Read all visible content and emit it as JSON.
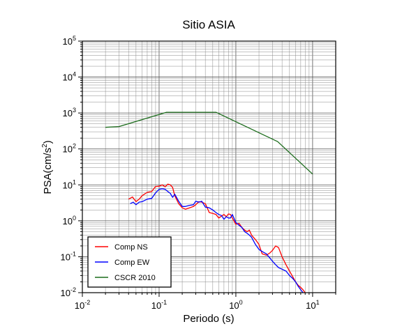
{
  "chart_data": {
    "type": "line",
    "title": "Sitio ASIA",
    "xlabel": "Periodo (s)",
    "ylabel_main": "PSA(cm/s",
    "ylabel_sup": "2",
    "ylabel_tail": ")",
    "x_scale": "log",
    "y_scale": "log",
    "xlim": [
      0.01,
      20
    ],
    "ylim": [
      0.01,
      100000
    ],
    "grid": true,
    "legend_position": "bottom-left",
    "x_ticks": [
      {
        "base": "10",
        "exp": "-2"
      },
      {
        "base": "10",
        "exp": "-1"
      },
      {
        "base": "10",
        "exp": "0"
      },
      {
        "base": "10",
        "exp": "1"
      }
    ],
    "y_ticks": [
      {
        "base": "10",
        "exp": "-2"
      },
      {
        "base": "10",
        "exp": "-1"
      },
      {
        "base": "10",
        "exp": "0"
      },
      {
        "base": "10",
        "exp": "1"
      },
      {
        "base": "10",
        "exp": "2"
      },
      {
        "base": "10",
        "exp": "3"
      },
      {
        "base": "10",
        "exp": "4"
      },
      {
        "base": "10",
        "exp": "5"
      }
    ],
    "series": [
      {
        "name": "Comp NS",
        "color": "#ff0000",
        "x": [
          0.04,
          0.045,
          0.05,
          0.055,
          0.06,
          0.07,
          0.08,
          0.09,
          0.1,
          0.11,
          0.12,
          0.13,
          0.14,
          0.15,
          0.16,
          0.18,
          0.2,
          0.22,
          0.25,
          0.28,
          0.3,
          0.33,
          0.36,
          0.4,
          0.45,
          0.5,
          0.55,
          0.6,
          0.65,
          0.7,
          0.75,
          0.8,
          0.85,
          0.9,
          1.0,
          1.1,
          1.2,
          1.3,
          1.4,
          1.5,
          1.6,
          1.8,
          2.0,
          2.2,
          2.5,
          2.8,
          3.0,
          3.3,
          3.6,
          4.0,
          4.5,
          5.0,
          5.5,
          6.0,
          6.5,
          7.0,
          7.5,
          8.0
        ],
        "y": [
          4,
          4.6,
          3.4,
          4,
          5,
          6.2,
          6.5,
          9,
          9.2,
          10,
          8.8,
          10.5,
          10,
          8.5,
          5,
          3,
          2.3,
          2.1,
          2.3,
          2.5,
          2.8,
          3.4,
          3.3,
          3.0,
          1.7,
          1.6,
          1.5,
          1.2,
          1.35,
          1.5,
          1.3,
          1.55,
          1.5,
          1.2,
          0.8,
          0.85,
          0.65,
          0.55,
          0.5,
          0.55,
          0.4,
          0.3,
          0.22,
          0.12,
          0.11,
          0.13,
          0.15,
          0.2,
          0.18,
          0.1,
          0.06,
          0.04,
          0.028,
          0.02,
          0.016,
          0.014,
          0.012,
          0.01
        ]
      },
      {
        "name": "Comp EW",
        "color": "#0000ff",
        "x": [
          0.042,
          0.046,
          0.05,
          0.055,
          0.06,
          0.07,
          0.08,
          0.09,
          0.1,
          0.11,
          0.12,
          0.13,
          0.14,
          0.15,
          0.16,
          0.18,
          0.2,
          0.22,
          0.25,
          0.28,
          0.3,
          0.33,
          0.36,
          0.4,
          0.45,
          0.5,
          0.55,
          0.6,
          0.65,
          0.7,
          0.75,
          0.8,
          0.85,
          0.9,
          1.0,
          1.1,
          1.2,
          1.3,
          1.4,
          1.5,
          1.6,
          1.8,
          2.0,
          2.2,
          2.5,
          2.8,
          3.0,
          3.3,
          3.6,
          4.0,
          4.5,
          5.0,
          5.5,
          6.0,
          6.5,
          7.0,
          7.5
        ],
        "y": [
          3,
          3.3,
          2.8,
          3.3,
          3.4,
          4,
          4.2,
          6,
          7.5,
          7.8,
          7.5,
          6.5,
          5.8,
          4.5,
          5.5,
          3.5,
          2.5,
          2.5,
          2.7,
          2.8,
          3.5,
          3.3,
          3.5,
          2.4,
          2.3,
          2.0,
          1.7,
          1.5,
          1.4,
          1.1,
          1.3,
          1.2,
          1.2,
          1.5,
          0.9,
          0.75,
          0.65,
          0.5,
          0.45,
          0.4,
          0.35,
          0.22,
          0.16,
          0.14,
          0.12,
          0.09,
          0.075,
          0.06,
          0.05,
          0.045,
          0.04,
          0.03,
          0.025,
          0.02,
          0.015,
          0.012,
          0.01
        ]
      },
      {
        "name": "CSCR 2010",
        "color": "#1a6b1a",
        "x": [
          0.02,
          0.03,
          0.125,
          0.55,
          3.5,
          10
        ],
        "y": [
          400,
          420,
          1050,
          1050,
          160,
          20
        ]
      }
    ]
  }
}
